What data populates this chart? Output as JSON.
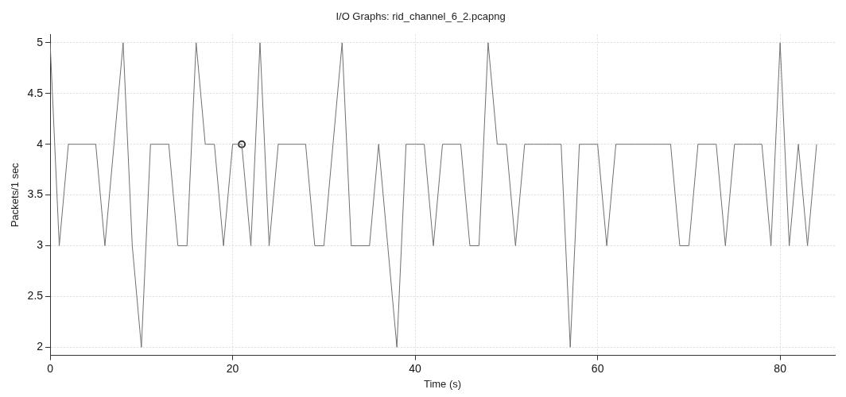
{
  "chart_data": {
    "type": "line",
    "title": "I/O Graphs: rid_channel_6_2.pcapng",
    "xlabel": "Time (s)",
    "ylabel": "Packets/1 sec",
    "x": [
      0,
      1,
      2,
      3,
      4,
      5,
      6,
      7,
      8,
      9,
      10,
      11,
      12,
      13,
      14,
      15,
      16,
      17,
      18,
      19,
      20,
      21,
      22,
      23,
      24,
      25,
      26,
      27,
      28,
      29,
      30,
      31,
      32,
      33,
      34,
      35,
      36,
      37,
      38,
      39,
      40,
      41,
      42,
      43,
      44,
      45,
      46,
      47,
      48,
      49,
      50,
      51,
      52,
      53,
      54,
      55,
      56,
      57,
      58,
      59,
      60,
      61,
      62,
      63,
      64,
      65,
      66,
      67,
      68,
      69,
      70,
      71,
      72,
      73,
      74,
      75,
      76,
      77,
      78,
      79,
      80,
      81,
      82,
      83,
      84
    ],
    "series": [
      {
        "color": "#707070",
        "marker": "none",
        "values": [
          5,
          3,
          4,
          4,
          4,
          4,
          3,
          4,
          5,
          3,
          2,
          4,
          4,
          4,
          3,
          3,
          5,
          4,
          4,
          3,
          4,
          4,
          3,
          5,
          3,
          4,
          4,
          4,
          4,
          3,
          3,
          4,
          5,
          3,
          3,
          3,
          4,
          3,
          2,
          4,
          4,
          4,
          3,
          4,
          4,
          4,
          3,
          3,
          5,
          4,
          4,
          3,
          4,
          4,
          4,
          4,
          4,
          2,
          4,
          4,
          4,
          3,
          4,
          4,
          4,
          4,
          4,
          4,
          4,
          3,
          3,
          4,
          4,
          4,
          3,
          4,
          4,
          4,
          4,
          3,
          5,
          3,
          4,
          3,
          4
        ]
      },
      {
        "type": "scatter",
        "color": "#333333",
        "marker": "circle",
        "x": [
          21
        ],
        "values": [
          4
        ]
      }
    ],
    "xlim": [
      0,
      86
    ],
    "xticks": [
      0,
      20,
      40,
      60,
      80
    ],
    "ylim": [
      1.92,
      5.08
    ],
    "yticks": [
      2,
      2.5,
      3,
      3.5,
      4,
      4.5,
      5
    ],
    "grid": true,
    "legend": false,
    "line_style": "solid"
  }
}
